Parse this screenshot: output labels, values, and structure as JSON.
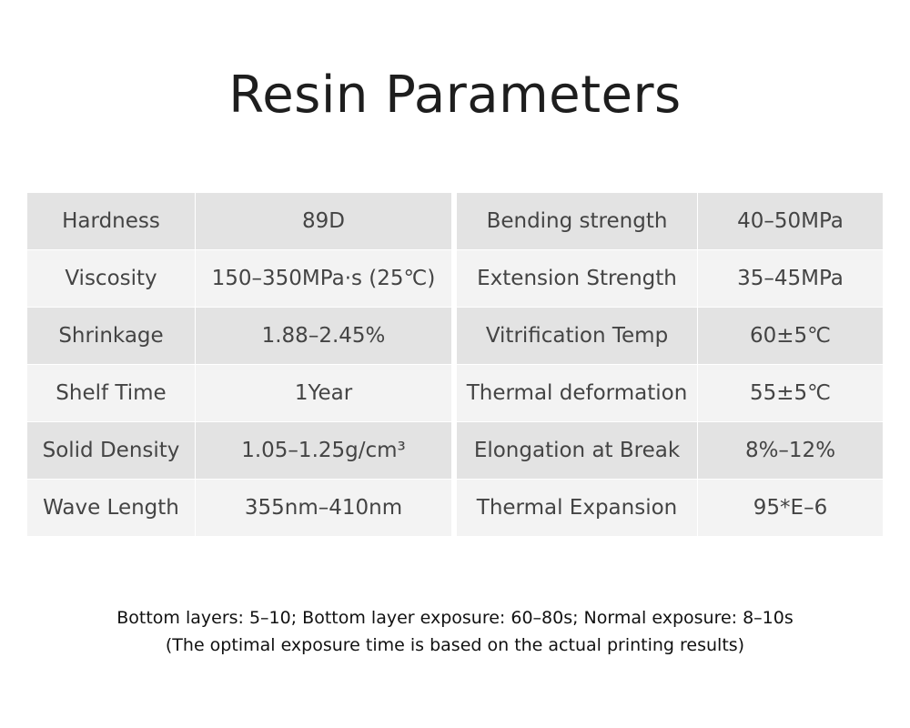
{
  "header": {
    "title": "Resin Parameters"
  },
  "table": {
    "rows": [
      [
        "Hardness",
        "89D",
        "Bending strength",
        "40–50MPa"
      ],
      [
        "Viscosity",
        "150–350MPa·s (25℃)",
        "Extension Strength",
        "35–45MPa"
      ],
      [
        "Shrinkage",
        "1.88–2.45%",
        "Vitrification Temp",
        "60±5℃"
      ],
      [
        "Shelf Time",
        "1Year",
        "Thermal deformation",
        "55±5℃"
      ],
      [
        "Solid Density",
        "1.05–1.25g/cm³",
        "Elongation at Break",
        "8%–12%"
      ],
      [
        "Wave Length",
        "355nm–410nm",
        "Thermal Expansion",
        "95*E–6"
      ]
    ]
  },
  "footer": {
    "lines": [
      "Bottom layers: 5–10; Bottom layer exposure: 60–80s; Normal exposure: 8–10s",
      "(The optimal exposure time is based on the actual printing results)"
    ]
  }
}
